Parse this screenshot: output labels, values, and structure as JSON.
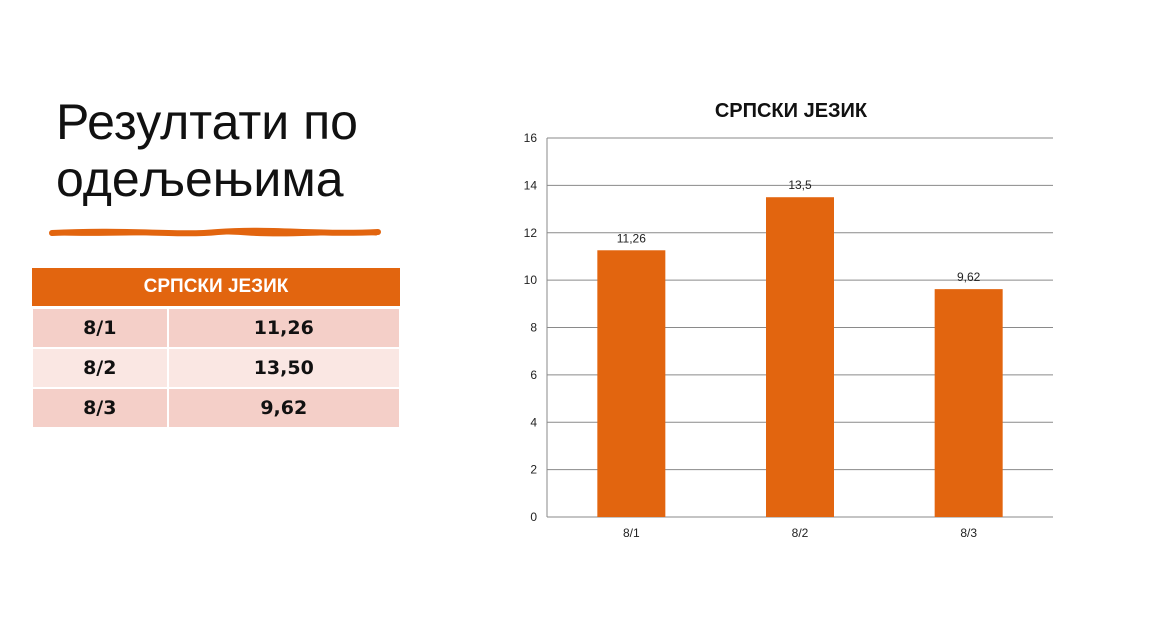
{
  "slide": {
    "title_line1": "Резултати по",
    "title_line2": "одељењима",
    "accent_color": "#E2650F"
  },
  "table": {
    "header": "СРПСКИ ЈЕЗИК",
    "rows": [
      [
        "8/1",
        "11,26"
      ],
      [
        "8/2",
        "13,50"
      ],
      [
        "8/3",
        "9,62"
      ]
    ]
  },
  "chart_data": {
    "type": "bar",
    "title": "СРПСКИ ЈЕЗИК",
    "categories": [
      "8/1",
      "8/2",
      "8/3"
    ],
    "values": [
      11.26,
      13.5,
      9.62
    ],
    "data_labels": [
      "11,26",
      "13,5",
      "9,62"
    ],
    "ylim": [
      0,
      16
    ],
    "yticks": [
      0,
      2,
      4,
      6,
      8,
      10,
      12,
      14,
      16
    ],
    "grid": true,
    "legend": "none",
    "bar_color": "#E2650F",
    "xlabel": "",
    "ylabel": ""
  }
}
